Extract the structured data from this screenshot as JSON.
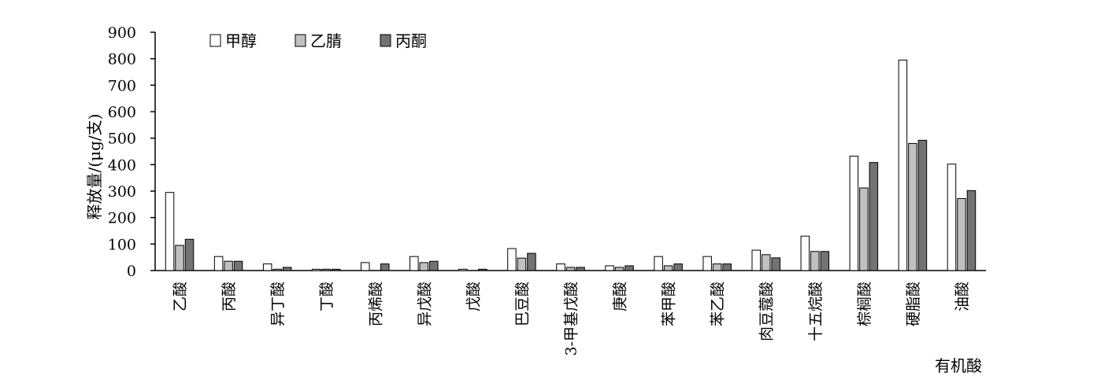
{
  "chart_data": {
    "type": "bar",
    "title": "",
    "xlabel": "有机酸",
    "ylabel": "释放量/(μg/支)",
    "ylim": [
      0,
      900
    ],
    "yticks": [
      0,
      100,
      200,
      300,
      400,
      500,
      600,
      700,
      800,
      900
    ],
    "categories": [
      "乙酸",
      "丙酸",
      "异丁酸",
      "丁酸",
      "丙烯酸",
      "异戊酸",
      "戊酸",
      "巴豆酸",
      "3-甲基戊酸",
      "庚酸",
      "苯甲酸",
      "苯乙酸",
      "肉豆蔻酸",
      "十五烷酸",
      "棕榈酸",
      "硬脂酸",
      "油酸"
    ],
    "series": [
      {
        "name": "甲醇",
        "color": "#ffffff",
        "values": [
          295,
          53,
          25,
          5,
          30,
          53,
          5,
          83,
          25,
          18,
          53,
          53,
          77,
          130,
          432,
          795,
          402
        ]
      },
      {
        "name": "乙腈",
        "color": "#c0c0c0",
        "values": [
          95,
          35,
          5,
          5,
          0,
          30,
          0,
          47,
          12,
          12,
          18,
          25,
          60,
          72,
          312,
          480,
          272
        ]
      },
      {
        "name": "丙酮",
        "color": "#737373",
        "values": [
          118,
          35,
          12,
          5,
          25,
          35,
          5,
          65,
          12,
          18,
          25,
          25,
          48,
          72,
          408,
          492,
          302
        ]
      }
    ],
    "legend_position": "top-left",
    "grid": false
  }
}
